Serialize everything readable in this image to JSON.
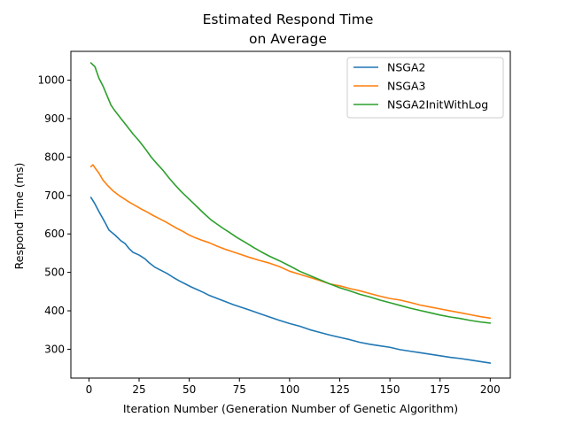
{
  "chart_data": {
    "type": "line",
    "title": "Estimated Respond Time",
    "subtitle": "on Average",
    "xlabel": "Iteration Number (Generation Number of Genetic Algorithm)",
    "ylabel": "Respond Time (ms)",
    "xlim": [
      -9,
      210
    ],
    "ylim": [
      225,
      1075
    ],
    "xticks": [
      0,
      25,
      50,
      75,
      100,
      125,
      150,
      175,
      200
    ],
    "xtick_labels": [
      "0",
      "25",
      "50",
      "75",
      "100",
      "125",
      "150",
      "175",
      "200"
    ],
    "yticks": [
      300,
      400,
      500,
      600,
      700,
      800,
      900,
      1000
    ],
    "ytick_labels": [
      "300",
      "400",
      "500",
      "600",
      "700",
      "800",
      "900",
      "1000"
    ],
    "grid": false,
    "legend_position": "top-right",
    "series": [
      {
        "name": "NSGA2",
        "color": "#1f77b4",
        "points": [
          [
            1,
            695
          ],
          [
            3,
            678
          ],
          [
            5,
            658
          ],
          [
            8,
            630
          ],
          [
            10,
            610
          ],
          [
            13,
            597
          ],
          [
            16,
            582
          ],
          [
            18,
            575
          ],
          [
            20,
            562
          ],
          [
            22,
            552
          ],
          [
            25,
            545
          ],
          [
            28,
            535
          ],
          [
            30,
            525
          ],
          [
            33,
            513
          ],
          [
            36,
            505
          ],
          [
            39,
            497
          ],
          [
            42,
            487
          ],
          [
            45,
            478
          ],
          [
            48,
            470
          ],
          [
            51,
            462
          ],
          [
            54,
            455
          ],
          [
            57,
            448
          ],
          [
            60,
            440
          ],
          [
            64,
            432
          ],
          [
            68,
            424
          ],
          [
            72,
            416
          ],
          [
            76,
            409
          ],
          [
            80,
            402
          ],
          [
            85,
            393
          ],
          [
            90,
            384
          ],
          [
            95,
            375
          ],
          [
            100,
            367
          ],
          [
            105,
            360
          ],
          [
            110,
            351
          ],
          [
            115,
            344
          ],
          [
            120,
            337
          ],
          [
            125,
            331
          ],
          [
            130,
            325
          ],
          [
            135,
            318
          ],
          [
            140,
            313
          ],
          [
            145,
            309
          ],
          [
            150,
            305
          ],
          [
            155,
            299
          ],
          [
            160,
            295
          ],
          [
            165,
            291
          ],
          [
            170,
            287
          ],
          [
            175,
            283
          ],
          [
            180,
            279
          ],
          [
            185,
            276
          ],
          [
            190,
            272
          ],
          [
            195,
            268
          ],
          [
            200,
            264
          ]
        ]
      },
      {
        "name": "NSGA3",
        "color": "#ff7f0e",
        "points": [
          [
            1,
            775
          ],
          [
            2,
            780
          ],
          [
            3,
            772
          ],
          [
            5,
            758
          ],
          [
            7,
            740
          ],
          [
            9,
            728
          ],
          [
            12,
            712
          ],
          [
            15,
            700
          ],
          [
            18,
            690
          ],
          [
            20,
            683
          ],
          [
            23,
            674
          ],
          [
            26,
            665
          ],
          [
            29,
            657
          ],
          [
            32,
            648
          ],
          [
            35,
            640
          ],
          [
            38,
            632
          ],
          [
            41,
            623
          ],
          [
            44,
            614
          ],
          [
            47,
            606
          ],
          [
            50,
            597
          ],
          [
            53,
            590
          ],
          [
            56,
            584
          ],
          [
            60,
            577
          ],
          [
            64,
            568
          ],
          [
            68,
            560
          ],
          [
            72,
            553
          ],
          [
            76,
            546
          ],
          [
            80,
            539
          ],
          [
            85,
            531
          ],
          [
            90,
            524
          ],
          [
            95,
            515
          ],
          [
            100,
            503
          ],
          [
            105,
            495
          ],
          [
            110,
            487
          ],
          [
            115,
            479
          ],
          [
            120,
            470
          ],
          [
            125,
            465
          ],
          [
            130,
            458
          ],
          [
            135,
            452
          ],
          [
            140,
            445
          ],
          [
            145,
            438
          ],
          [
            150,
            432
          ],
          [
            155,
            428
          ],
          [
            160,
            422
          ],
          [
            165,
            415
          ],
          [
            170,
            410
          ],
          [
            175,
            405
          ],
          [
            180,
            400
          ],
          [
            185,
            395
          ],
          [
            190,
            390
          ],
          [
            195,
            385
          ],
          [
            200,
            381
          ]
        ]
      },
      {
        "name": "NSGA2InitWithLog",
        "color": "#2ca02c",
        "points": [
          [
            1,
            1045
          ],
          [
            3,
            1035
          ],
          [
            5,
            1005
          ],
          [
            7,
            985
          ],
          [
            9,
            960
          ],
          [
            11,
            935
          ],
          [
            13,
            920
          ],
          [
            16,
            900
          ],
          [
            19,
            880
          ],
          [
            22,
            860
          ],
          [
            25,
            842
          ],
          [
            28,
            822
          ],
          [
            31,
            800
          ],
          [
            34,
            782
          ],
          [
            37,
            765
          ],
          [
            40,
            745
          ],
          [
            43,
            727
          ],
          [
            46,
            710
          ],
          [
            49,
            695
          ],
          [
            52,
            680
          ],
          [
            55,
            665
          ],
          [
            58,
            650
          ],
          [
            61,
            636
          ],
          [
            64,
            625
          ],
          [
            67,
            614
          ],
          [
            70,
            604
          ],
          [
            74,
            590
          ],
          [
            78,
            578
          ],
          [
            82,
            565
          ],
          [
            86,
            553
          ],
          [
            90,
            542
          ],
          [
            95,
            530
          ],
          [
            100,
            517
          ],
          [
            105,
            503
          ],
          [
            110,
            492
          ],
          [
            115,
            481
          ],
          [
            120,
            470
          ],
          [
            125,
            460
          ],
          [
            130,
            452
          ],
          [
            135,
            443
          ],
          [
            140,
            436
          ],
          [
            145,
            428
          ],
          [
            150,
            421
          ],
          [
            155,
            414
          ],
          [
            160,
            407
          ],
          [
            165,
            401
          ],
          [
            170,
            395
          ],
          [
            175,
            389
          ],
          [
            180,
            384
          ],
          [
            185,
            380
          ],
          [
            190,
            375
          ],
          [
            195,
            371
          ],
          [
            200,
            368
          ]
        ]
      }
    ]
  }
}
